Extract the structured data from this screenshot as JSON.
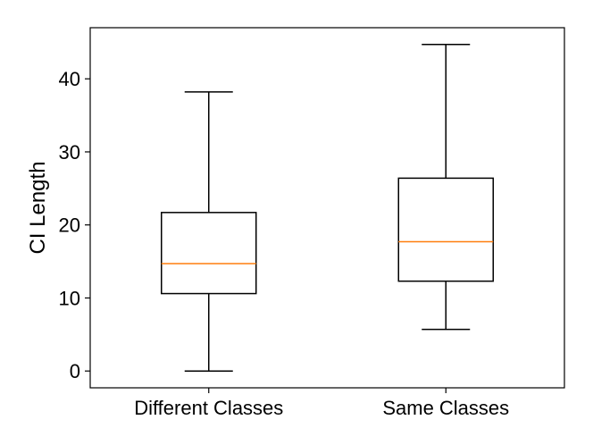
{
  "chart_data": {
    "type": "boxplot",
    "title": "",
    "xlabel": "",
    "ylabel": "CI Length",
    "ylim": [
      -2.3,
      47
    ],
    "yticks": [
      0,
      10,
      20,
      30,
      40
    ],
    "grid": false,
    "categories": [
      "Different Classes",
      "Same Classes"
    ],
    "boxes": [
      {
        "category": "Different Classes",
        "whisker_low": 0.0,
        "q1": 10.6,
        "median": 14.7,
        "q3": 21.7,
        "whisker_high": 38.2
      },
      {
        "category": "Same Classes",
        "whisker_low": 5.7,
        "q1": 12.3,
        "median": 17.7,
        "q3": 26.4,
        "whisker_high": 44.7
      }
    ],
    "colors": {
      "box": "#000000",
      "median": "#ff7f0e"
    }
  }
}
